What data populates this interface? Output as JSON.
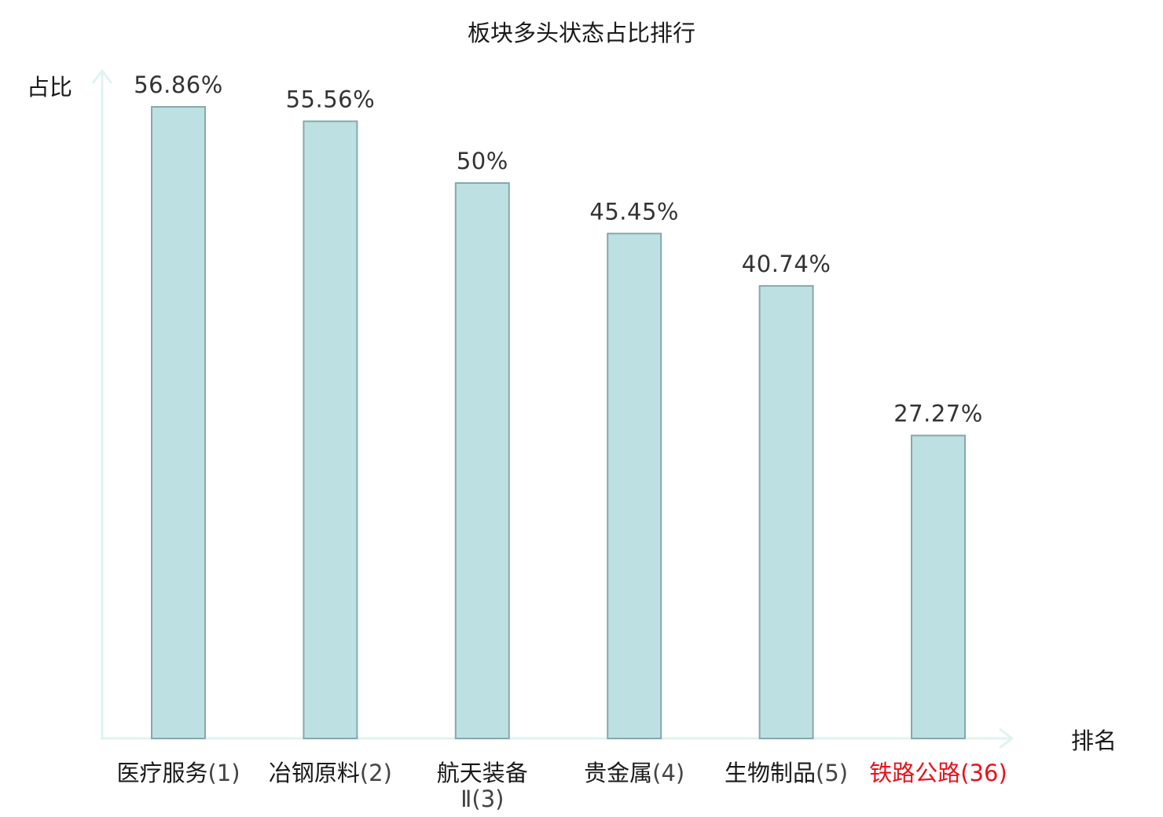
{
  "chart_data": {
    "type": "bar",
    "title": "板块多头状态占比排行",
    "ylabel": "占比",
    "xlabel": "排名",
    "categories": [
      {
        "name": "医疗服务",
        "rank": "(1)"
      },
      {
        "name": "冶钢原料",
        "rank": "(2)"
      },
      {
        "name": "航天装备Ⅱ",
        "rank": "(3)"
      },
      {
        "name": "贵金属",
        "rank": "(4)"
      },
      {
        "name": "生物制品",
        "rank": "(5)"
      },
      {
        "name": "铁路公路",
        "rank": "(36)",
        "highlight": true
      }
    ],
    "values": [
      56.86,
      55.56,
      50,
      45.45,
      40.74,
      27.27
    ],
    "value_labels": [
      "56.86%",
      "55.56%",
      "50%",
      "45.45%",
      "40.74%",
      "27.27%"
    ],
    "ylim": [
      0,
      60
    ],
    "grid": false,
    "legend": "none"
  },
  "colors": {
    "bar_fill": "#bde1e3",
    "bar_stroke": "#86a9aa",
    "axis": "#e0f3f1",
    "text": "#1a1a1a",
    "value_text": "#333333",
    "highlight": "#e8121a"
  }
}
